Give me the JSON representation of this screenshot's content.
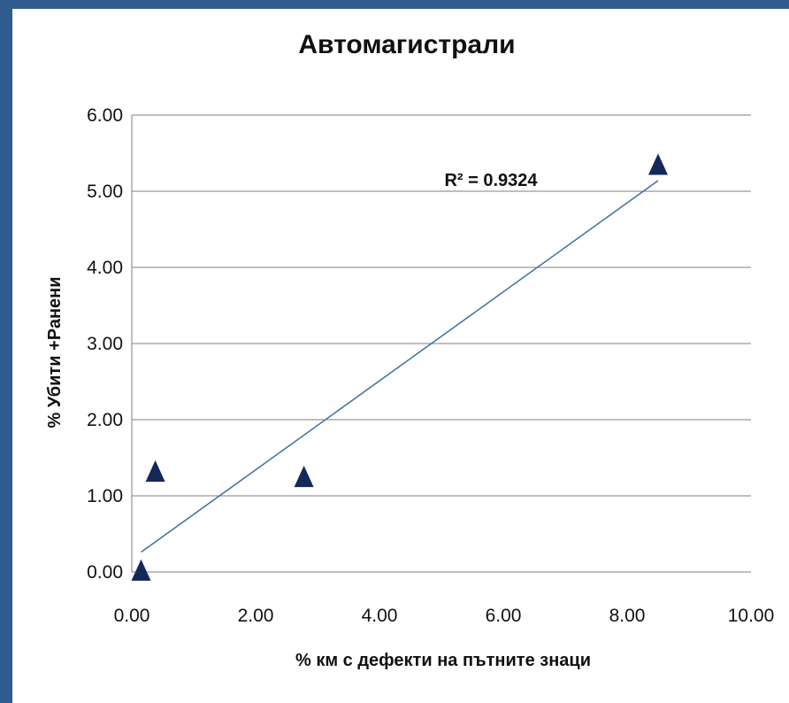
{
  "chart_data": {
    "type": "scatter",
    "title": "Автомагистрали",
    "xlabel": "% км с дефекти на пътните знаци",
    "ylabel": "% Убити +Ранени",
    "xlim": [
      0,
      10
    ],
    "ylim": [
      0,
      6
    ],
    "x_ticks": [
      "0.00",
      "2.00",
      "4.00",
      "6.00",
      "8.00",
      "10.00"
    ],
    "y_ticks": [
      "0.00",
      "1.00",
      "2.00",
      "3.00",
      "4.00",
      "5.00",
      "6.00"
    ],
    "grid": "horizontal",
    "marker": "triangle",
    "series": [
      {
        "points": [
          {
            "x": 0.15,
            "y": 0.0
          },
          {
            "x": 0.38,
            "y": 1.3
          },
          {
            "x": 2.78,
            "y": 1.23
          },
          {
            "x": 8.5,
            "y": 5.33
          }
        ]
      }
    ],
    "trendline": {
      "type": "linear",
      "from": {
        "x": 0.15,
        "y": 0.26
      },
      "to": {
        "x": 8.5,
        "y": 5.14
      },
      "label": "R² = 0.9324"
    },
    "colors": {
      "marker": "#14285a",
      "trendline": "#3f6ea6",
      "grid": "#7f7f7f",
      "frame": "#2e5c8f"
    }
  }
}
